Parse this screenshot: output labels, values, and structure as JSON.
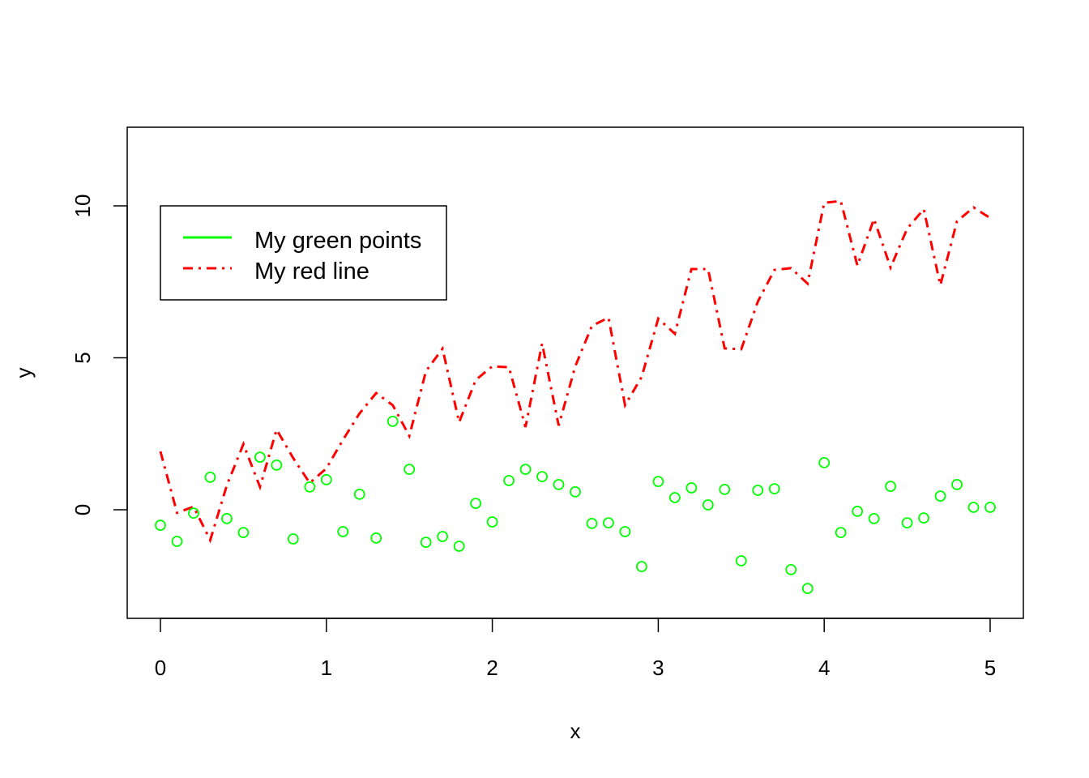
{
  "chart_data": {
    "type": "scatter",
    "title": "",
    "xlabel": "x",
    "ylabel": "y",
    "xlim": [
      -0.2,
      5.2
    ],
    "ylim": [
      -3.6,
      12.6
    ],
    "x_ticks": [
      "0",
      "1",
      "2",
      "3",
      "4",
      "5"
    ],
    "y_ticks": [
      "0",
      "5",
      "10"
    ],
    "grid": false,
    "legend_position": "top-left",
    "x": [
      0,
      0.1,
      0.2,
      0.3,
      0.4,
      0.5,
      0.6,
      0.7,
      0.8,
      0.9,
      1,
      1.1,
      1.2,
      1.3,
      1.4,
      1.5,
      1.6,
      1.7,
      1.8,
      1.9,
      2,
      2.1,
      2.2,
      2.3,
      2.4,
      2.5,
      2.6,
      2.7,
      2.8,
      2.9,
      3,
      3.1,
      3.2,
      3.3,
      3.4,
      3.5,
      3.6,
      3.7,
      3.8,
      3.9,
      4,
      4.1,
      4.2,
      4.3,
      4.4,
      4.5,
      4.6,
      4.7,
      4.8,
      4.9,
      5
    ],
    "series": [
      {
        "name": "My green points",
        "kind": "points",
        "color": "#00ff00",
        "values": [
          -0.51,
          -1.04,
          -0.11,
          1.07,
          -0.29,
          -0.75,
          1.73,
          1.47,
          -0.96,
          0.75,
          0.99,
          -0.72,
          0.51,
          -0.93,
          2.91,
          1.33,
          -1.07,
          -0.88,
          -1.2,
          0.21,
          -0.4,
          0.96,
          1.33,
          1.09,
          0.83,
          0.59,
          -0.45,
          -0.43,
          -0.72,
          -1.87,
          0.93,
          0.4,
          0.72,
          0.16,
          0.67,
          -1.68,
          0.64,
          0.69,
          -1.97,
          -2.59,
          1.55,
          -0.75,
          -0.05,
          -0.29,
          0.77,
          -0.43,
          -0.27,
          0.45,
          0.83,
          0.08,
          0.08
        ]
      },
      {
        "name": "My red line",
        "kind": "line",
        "line_style": "dotdash",
        "color": "#ff0000",
        "values": [
          1.92,
          -0.1,
          0.1,
          -1.0,
          0.8,
          2.16,
          0.75,
          2.64,
          1.7,
          0.88,
          1.36,
          2.3,
          3.17,
          3.84,
          3.44,
          2.43,
          4.56,
          5.3,
          2.88,
          4.27,
          4.72,
          4.69,
          2.72,
          5.47,
          2.77,
          4.72,
          6.05,
          6.32,
          3.44,
          4.37,
          6.29,
          5.79,
          7.92,
          7.92,
          5.31,
          5.28,
          6.85,
          7.89,
          7.95,
          7.44,
          10.1,
          10.16,
          8.03,
          9.57,
          7.97,
          9.25,
          9.89,
          7.39,
          9.49,
          9.95,
          9.6
        ]
      }
    ]
  }
}
